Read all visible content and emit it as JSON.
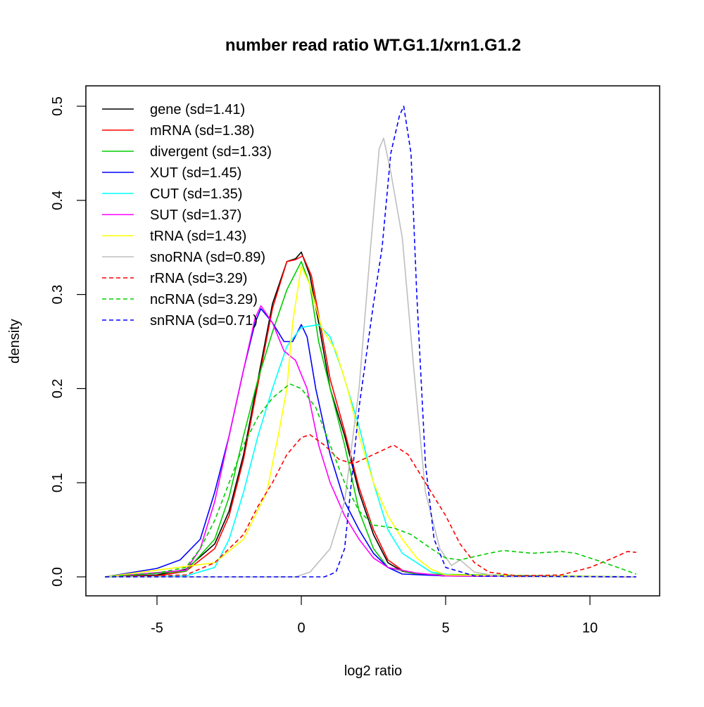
{
  "chart_data": {
    "type": "line",
    "title": "number read ratio WT.G1.1/xrn1.G1.2",
    "xlabel": "log2 ratio",
    "ylabel": "density",
    "xlim": [
      -7.3,
      12.5
    ],
    "ylim": [
      -0.02,
      0.52
    ],
    "xticks": [
      -5,
      0,
      5,
      10
    ],
    "xtick_labels": [
      "-5",
      "0",
      "5",
      "10"
    ],
    "yticks": [
      0.0,
      0.1,
      0.2,
      0.3,
      0.4,
      0.5
    ],
    "ytick_labels": [
      "0.0",
      "0.1",
      "0.2",
      "0.3",
      "0.4",
      "0.5"
    ],
    "grid": false,
    "legend_position": "top-left",
    "series": [
      {
        "name": "gene (sd=1.41)",
        "color": "#000000",
        "dash": false,
        "x": [
          -6.8,
          -5,
          -4,
          -3,
          -2.5,
          -2,
          -1.5,
          -1,
          -0.5,
          -0.2,
          0,
          0.3,
          0.6,
          1,
          1.5,
          2,
          2.5,
          3,
          3.5,
          4,
          5,
          11.6
        ],
        "y": [
          0,
          0.002,
          0.008,
          0.035,
          0.07,
          0.13,
          0.21,
          0.29,
          0.335,
          0.338,
          0.345,
          0.32,
          0.27,
          0.2,
          0.15,
          0.09,
          0.045,
          0.015,
          0.006,
          0.003,
          0.001,
          0
        ]
      },
      {
        "name": "mRNA (sd=1.38)",
        "color": "#ff0000",
        "dash": false,
        "x": [
          -6.8,
          -5,
          -4,
          -3,
          -2.5,
          -2,
          -1.5,
          -1,
          -0.5,
          -0.2,
          0.05,
          0.35,
          0.65,
          1,
          1.5,
          2,
          2.5,
          3,
          3.5,
          4,
          5,
          11.6
        ],
        "y": [
          0,
          0.001,
          0.006,
          0.03,
          0.065,
          0.125,
          0.205,
          0.285,
          0.335,
          0.337,
          0.341,
          0.32,
          0.27,
          0.21,
          0.155,
          0.095,
          0.05,
          0.018,
          0.007,
          0.003,
          0.001,
          0
        ]
      },
      {
        "name": "divergent (sd=1.33)",
        "color": "#00cd00",
        "dash": false,
        "x": [
          -6.8,
          -4,
          -3,
          -2.5,
          -2,
          -1.5,
          -1,
          -0.5,
          0,
          0.3,
          0.6,
          1,
          1.5,
          2,
          2.5,
          3,
          4,
          11.6
        ],
        "y": [
          0,
          0.006,
          0.04,
          0.085,
          0.15,
          0.21,
          0.26,
          0.305,
          0.335,
          0.31,
          0.25,
          0.2,
          0.14,
          0.07,
          0.03,
          0.01,
          0.003,
          0
        ]
      },
      {
        "name": "XUT (sd=1.45)",
        "color": "#0000ff",
        "dash": false,
        "x": [
          -6.8,
          -5,
          -4.2,
          -3.5,
          -3,
          -2.5,
          -2,
          -1.6,
          -1.4,
          -1,
          -0.6,
          -0.3,
          0,
          0.2,
          0.5,
          1,
          1.5,
          2,
          2.5,
          3,
          3.5,
          5,
          11.6
        ],
        "y": [
          0,
          0.009,
          0.018,
          0.04,
          0.09,
          0.15,
          0.22,
          0.27,
          0.285,
          0.27,
          0.25,
          0.25,
          0.268,
          0.255,
          0.2,
          0.13,
          0.08,
          0.05,
          0.025,
          0.01,
          0.003,
          0.001,
          0
        ]
      },
      {
        "name": "CUT (sd=1.35)",
        "color": "#00ffff",
        "dash": false,
        "x": [
          -6.8,
          -4,
          -3,
          -2.5,
          -2,
          -1.5,
          -1,
          -0.5,
          0,
          0.6,
          1,
          1.4,
          2,
          2.5,
          3,
          3.5,
          4,
          4.5,
          5.5,
          11.6
        ],
        "y": [
          0,
          0.001,
          0.01,
          0.04,
          0.09,
          0.15,
          0.2,
          0.245,
          0.265,
          0.268,
          0.255,
          0.22,
          0.16,
          0.1,
          0.05,
          0.025,
          0.015,
          0.005,
          0.001,
          0
        ]
      },
      {
        "name": "SUT (sd=1.37)",
        "color": "#ff00ff",
        "dash": false,
        "x": [
          -6.8,
          -4,
          -3.5,
          -3,
          -2.5,
          -2,
          -1.6,
          -1.4,
          -1,
          -0.6,
          -0.2,
          0.2,
          0.6,
          1,
          1.5,
          2,
          2.5,
          3,
          4,
          5,
          11.6
        ],
        "y": [
          0,
          0.007,
          0.03,
          0.08,
          0.15,
          0.22,
          0.275,
          0.288,
          0.27,
          0.24,
          0.23,
          0.2,
          0.14,
          0.1,
          0.065,
          0.04,
          0.02,
          0.01,
          0.004,
          0.001,
          0
        ]
      },
      {
        "name": "tRNA (sd=1.43)",
        "color": "#ffff00",
        "dash": false,
        "x": [
          -6.8,
          -3,
          -2,
          -1.2,
          -0.8,
          -0.5,
          -0.3,
          0,
          0.3,
          0.7,
          1.2,
          1.6,
          2,
          2.5,
          3,
          3.5,
          4,
          4.5,
          5,
          11.6
        ],
        "y": [
          0,
          0.015,
          0.04,
          0.09,
          0.15,
          0.2,
          0.27,
          0.33,
          0.31,
          0.265,
          0.24,
          0.2,
          0.15,
          0.1,
          0.065,
          0.04,
          0.02,
          0.008,
          0.002,
          0
        ]
      },
      {
        "name": "snoRNA (sd=0.89)",
        "color": "#bebebe",
        "dash": false,
        "x": [
          -6.8,
          -0.2,
          0.3,
          1,
          1.5,
          2,
          2.4,
          2.7,
          2.85,
          3.1,
          3.5,
          3.9,
          4.3,
          4.8,
          5.2,
          5.5,
          6,
          7,
          11.6
        ],
        "y": [
          0,
          0,
          0.005,
          0.03,
          0.08,
          0.2,
          0.35,
          0.455,
          0.466,
          0.43,
          0.36,
          0.22,
          0.09,
          0.03,
          0.012,
          0.018,
          0.005,
          0,
          0
        ]
      },
      {
        "name": "rRNA (sd=3.29)",
        "color": "#ff0000",
        "dash": true,
        "x": [
          -6.8,
          -4,
          -3,
          -2,
          -1.5,
          -1,
          -0.5,
          0,
          0.3,
          0.8,
          1.3,
          1.8,
          2.5,
          3.2,
          3.7,
          4.3,
          5,
          5.5,
          6,
          6.5,
          7.5,
          9,
          10,
          10.8,
          11.3,
          11.6
        ],
        "y": [
          0,
          0.002,
          0.015,
          0.045,
          0.075,
          0.1,
          0.13,
          0.148,
          0.151,
          0.14,
          0.125,
          0.12,
          0.13,
          0.14,
          0.13,
          0.1,
          0.065,
          0.035,
          0.015,
          0.005,
          0.001,
          0.002,
          0.01,
          0.02,
          0.027,
          0.026
        ]
      },
      {
        "name": "ncRNA (sd=3.29)",
        "color": "#00cd00",
        "dash": true,
        "x": [
          -6.8,
          -5,
          -4,
          -3.5,
          -3,
          -2.5,
          -2,
          -1.5,
          -1,
          -0.4,
          0,
          0.5,
          1,
          1.5,
          2,
          2.5,
          3.2,
          3.8,
          4.5,
          5,
          5.5,
          6.5,
          7,
          8,
          9,
          9.5,
          10.5,
          11.6
        ],
        "y": [
          0,
          0.004,
          0.01,
          0.03,
          0.06,
          0.1,
          0.14,
          0.17,
          0.19,
          0.205,
          0.2,
          0.18,
          0.14,
          0.1,
          0.07,
          0.055,
          0.052,
          0.045,
          0.03,
          0.02,
          0.018,
          0.025,
          0.028,
          0.025,
          0.027,
          0.025,
          0.015,
          0.003
        ]
      },
      {
        "name": "snRNA (sd=0.71)",
        "color": "#0000ff",
        "dash": true,
        "x": [
          -6.8,
          0.8,
          1.2,
          1.5,
          1.7,
          2,
          2.5,
          2.8,
          3.1,
          3.4,
          3.55,
          3.8,
          4,
          4.3,
          4.6,
          5,
          6,
          11.6
        ],
        "y": [
          0,
          0,
          0.005,
          0.03,
          0.09,
          0.18,
          0.29,
          0.35,
          0.45,
          0.49,
          0.5,
          0.45,
          0.3,
          0.12,
          0.04,
          0.01,
          0.001,
          0
        ]
      }
    ]
  }
}
